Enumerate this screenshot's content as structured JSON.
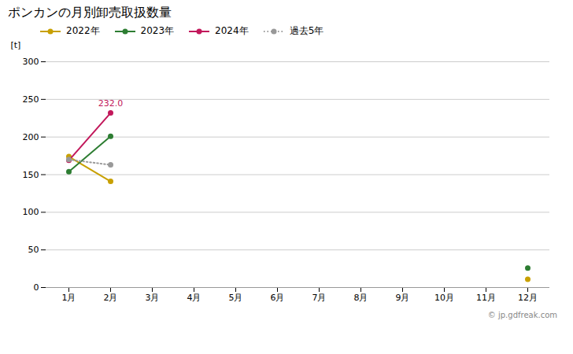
{
  "chart_data": {
    "type": "line",
    "title": "ポンカンの月別卸売取扱数量",
    "y_label": "[t]",
    "caption": "© jp.gdfreak.com",
    "categories": [
      "1月",
      "2月",
      "3月",
      "4月",
      "5月",
      "6月",
      "7月",
      "8月",
      "9月",
      "10月",
      "11月",
      "12月"
    ],
    "series": [
      {
        "name": "2022年",
        "color": "#c8a000",
        "marker": "o",
        "line_style": "solid",
        "values": [
          174,
          141,
          null,
          null,
          null,
          null,
          null,
          null,
          null,
          null,
          null,
          11
        ]
      },
      {
        "name": "2023年",
        "color": "#2d7d32",
        "marker": "o",
        "line_style": "solid",
        "values": [
          154,
          201,
          null,
          null,
          null,
          null,
          null,
          null,
          null,
          null,
          null,
          26
        ]
      },
      {
        "name": "2024年",
        "color": "#c2185b",
        "marker": "o",
        "line_style": "solid",
        "values": [
          169,
          232,
          null,
          null,
          null,
          null,
          null,
          null,
          null,
          null,
          null,
          null
        ]
      },
      {
        "name": "過去5年",
        "color": "#999999",
        "marker": "o",
        "line_style": "dotted",
        "values": [
          170,
          163,
          null,
          null,
          null,
          null,
          null,
          null,
          null,
          null,
          null,
          null
        ]
      }
    ],
    "annotations": [
      {
        "text": "232.0",
        "x": "2月",
        "y": 232,
        "color": "#c2185b"
      }
    ],
    "ylim": [
      0,
      300
    ],
    "yticks": [
      0,
      50,
      100,
      150,
      200,
      250,
      300
    ],
    "grid": true,
    "legend": "top"
  }
}
